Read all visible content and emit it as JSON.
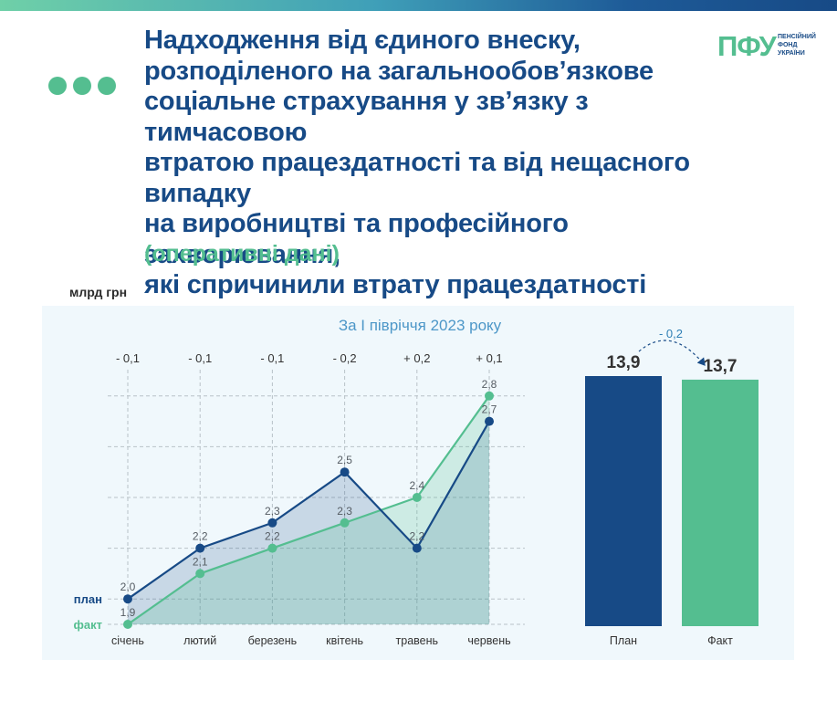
{
  "header": {
    "title": "Надходження від єдиного внеску,\nрозподіленого на загальнообов’язкове\nсоціальне страхування у зв’язку з тимчасовою\nвтратою працездатності та від нещасного випадку\nна виробництві та професійного захворювання,\nякі спричинили втрату працездатності",
    "subtitle": "(оперативні дані)",
    "logo_mark": "ПФУ",
    "logo_text": "ПЕНСІЙНИЙ ФОНД УКРАЇНИ"
  },
  "colors": {
    "plan": "#174a86",
    "fact": "#54be90",
    "title": "#174a86",
    "accent": "#54be90"
  },
  "chart_data": [
    {
      "type": "line",
      "title": "За I півріччя 2023 року",
      "ylabel": "млрд грн",
      "categories": [
        "січень",
        "лютий",
        "березень",
        "квітень",
        "травень",
        "червень"
      ],
      "series": [
        {
          "name": "план",
          "values_labels": [
            "2,0",
            "2,2",
            "2,3",
            "2,5",
            "2,2",
            "2,7"
          ],
          "values": [
            2.0,
            2.2,
            2.3,
            2.5,
            2.2,
            2.7
          ]
        },
        {
          "name": "факт",
          "values_labels": [
            "1,9",
            "2,1",
            "2,2",
            "2,3",
            "2,4",
            "2,8"
          ],
          "values": [
            1.9,
            2.1,
            2.2,
            2.3,
            2.4,
            2.8
          ]
        }
      ],
      "differences": [
        "- 0,1",
        "- 0,1",
        "- 0,1",
        "- 0,2",
        "+ 0,2",
        "+ 0,1"
      ],
      "ylim": [
        1.9,
        2.8
      ],
      "grid": true
    },
    {
      "type": "bar",
      "categories": [
        "План",
        "Факт"
      ],
      "values": [
        13.9,
        13.7
      ],
      "value_labels": [
        "13,9",
        "13,7"
      ],
      "difference": "- 0,2",
      "ylim": [
        0,
        13.9
      ]
    }
  ]
}
